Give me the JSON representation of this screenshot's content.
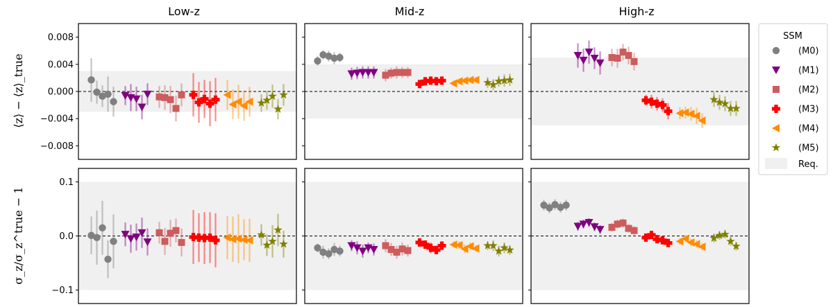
{
  "chart_data": {
    "type": "scatter",
    "panel_titles": [
      "Low-z",
      "Mid-z",
      "High-z"
    ],
    "ylabels": [
      "⟨z⟩ − ⟨z⟩_true",
      "σ_z/σ_z^true − 1"
    ],
    "legend": {
      "title": "SSM",
      "placement": "right",
      "entries": [
        {
          "label": "(M0)",
          "color": "#808080",
          "marker": "circle"
        },
        {
          "label": "(M1)",
          "color": "#800080",
          "marker": "triangle-down"
        },
        {
          "label": "(M2)",
          "color": "#cd5c5c",
          "marker": "square"
        },
        {
          "label": "(M3)",
          "color": "#ff0000",
          "marker": "plus"
        },
        {
          "label": "(M4)",
          "color": "#ff8c00",
          "marker": "triangle-left"
        },
        {
          "label": "(M5)",
          "color": "#808000",
          "marker": "star"
        }
      ],
      "band_label": "Req."
    },
    "rows": [
      {
        "name": "mean_offset",
        "ylim": [
          -0.01,
          0.01
        ],
        "yticks": [
          -0.008,
          -0.004,
          0.0,
          0.004,
          0.008
        ],
        "ytick_labels": [
          "−0.008",
          "−0.004",
          "0.000",
          "0.004",
          "0.008"
        ],
        "panels": [
          {
            "band": [
              -0.003,
              0.003
            ],
            "series": [
              {
                "values": [
                  0.0017,
                  -0.0001,
                  -0.0007,
                  -0.0004,
                  -0.0015
                ],
                "errors": [
                  0.0032,
                  0.0017,
                  0.0016,
                  0.0026,
                  0.0022
                ]
              },
              {
                "values": [
                  -0.0006,
                  -0.0009,
                  -0.0011,
                  -0.0023,
                  -0.0004
                ],
                "errors": [
                  0.0014,
                  0.002,
                  0.0018,
                  0.0018,
                  0.0016
                ]
              },
              {
                "values": [
                  -0.0008,
                  -0.0009,
                  -0.0012,
                  -0.0025,
                  -0.0005
                ],
                "errors": [
                  0.0016,
                  0.0018,
                  0.002,
                  0.0019,
                  0.0017
                ]
              },
              {
                "values": [
                  -0.0005,
                  -0.0016,
                  -0.0011,
                  -0.0018,
                  -0.0012
                ],
                "errors": [
                  0.0032,
                  0.003,
                  0.0028,
                  0.0033,
                  0.0032
                ]
              },
              {
                "values": [
                  -0.0005,
                  -0.0019,
                  -0.0015,
                  -0.0021,
                  -0.0015
                ],
                "errors": [
                  0.0022,
                  0.0022,
                  0.0025,
                  0.0022,
                  0.0022
                ]
              },
              {
                "values": [
                  -0.0017,
                  -0.0013,
                  -0.0007,
                  -0.0026,
                  -0.0005
                ],
                "errors": [
                  0.0013,
                  0.0014,
                  0.0017,
                  0.0015,
                  0.0016
                ]
              }
            ]
          },
          {
            "band": [
              -0.004,
              0.004
            ],
            "series": [
              {
                "values": [
                  0.0045,
                  0.0054,
                  0.0052,
                  0.0049,
                  0.005
                ],
                "errors": [
                  0.0007,
                  0.0007,
                  0.0008,
                  0.0009,
                  0.0007
                ]
              },
              {
                "values": [
                  0.0026,
                  0.0027,
                  0.0028,
                  0.0028,
                  0.0028
                ],
                "errors": [
                  0.0009,
                  0.0009,
                  0.0009,
                  0.0009,
                  0.0009
                ]
              },
              {
                "values": [
                  0.0024,
                  0.0027,
                  0.0028,
                  0.0028,
                  0.0028
                ],
                "errors": [
                  0.0009,
                  0.0008,
                  0.0009,
                  0.0008,
                  0.0008
                ]
              },
              {
                "values": [
                  0.0011,
                  0.0015,
                  0.0016,
                  0.0015,
                  0.0016
                ],
                "errors": [
                  0.0004,
                  0.0004,
                  0.0004,
                  0.0004,
                  0.0004
                ]
              },
              {
                "values": [
                  0.0012,
                  0.0015,
                  0.0016,
                  0.0017,
                  0.0017
                ],
                "errors": [
                  0.0004,
                  0.0004,
                  0.0004,
                  0.0004,
                  0.0004
                ]
              },
              {
                "values": [
                  0.0013,
                  0.001,
                  0.0015,
                  0.0016,
                  0.0017
                ],
                "errors": [
                  0.0008,
                  0.0008,
                  0.0008,
                  0.0009,
                  0.0009
                ]
              }
            ]
          },
          {
            "band": [
              -0.005,
              0.005
            ],
            "series": [
              {
                "values": [],
                "errors": []
              },
              {
                "values": [
                  0.0053,
                  0.0046,
                  0.0058,
                  0.0049,
                  0.0042
                ],
                "errors": [
                  0.0018,
                  0.0017,
                  0.0017,
                  0.0016,
                  0.0017
                ]
              },
              {
                "values": [
                  0.005,
                  0.0049,
                  0.0058,
                  0.0053,
                  0.0044
                ],
                "errors": [
                  0.0013,
                  0.0014,
                  0.0012,
                  0.0013,
                  0.0013
                ]
              },
              {
                "values": [
                  -0.0013,
                  -0.0015,
                  -0.0018,
                  -0.002,
                  -0.0029
                ],
                "errors": [
                  0.0008,
                  0.001,
                  0.001,
                  0.001,
                  0.0012
                ]
              },
              {
                "values": [
                  -0.0032,
                  -0.0031,
                  -0.0033,
                  -0.0036,
                  -0.0043
                ],
                "errors": [
                  0.0009,
                  0.0009,
                  0.001,
                  0.0012,
                  0.0011
                ]
              },
              {
                "values": [
                  -0.0012,
                  -0.0016,
                  -0.0018,
                  -0.0025,
                  -0.0025
                ],
                "errors": [
                  0.0011,
                  0.0011,
                  0.0011,
                  0.0011,
                  0.0011
                ]
              }
            ]
          }
        ]
      },
      {
        "name": "width_ratio",
        "ylim": [
          -0.125,
          0.125
        ],
        "yticks": [
          -0.1,
          0.0,
          0.1
        ],
        "ytick_labels": [
          "−0.1",
          "0.0",
          "0.1"
        ],
        "panels": [
          {
            "band": [
              -0.1,
              0.1
            ],
            "series": [
              {
                "values": [
                  0.001,
                  -0.003,
                  0.015,
                  -0.043,
                  -0.01
                ],
                "errors": [
                  0.035,
                  0.05,
                  0.05,
                  0.035,
                  0.05
                ]
              },
              {
                "values": [
                  0.003,
                  -0.005,
                  -0.002,
                  0.006,
                  -0.011
                ],
                "errors": [
                  0.022,
                  0.026,
                  0.025,
                  0.028,
                  0.025
                ]
              },
              {
                "values": [
                  0.006,
                  -0.01,
                  0.005,
                  0.01,
                  -0.012
                ],
                "errors": [
                  0.02,
                  0.025,
                  0.025,
                  0.022,
                  0.026
                ]
              },
              {
                "values": [
                  -0.002,
                  -0.003,
                  -0.004,
                  -0.003,
                  -0.008
                ],
                "errors": [
                  0.05,
                  0.045,
                  0.048,
                  0.047,
                  0.05
                ]
              },
              {
                "values": [
                  -0.003,
                  -0.006,
                  -0.005,
                  -0.007,
                  -0.008
                ],
                "errors": [
                  0.04,
                  0.042,
                  0.045,
                  0.038,
                  0.04
                ]
              },
              {
                "values": [
                  0.002,
                  -0.017,
                  -0.01,
                  0.011,
                  -0.015
                ],
                "errors": [
                  0.02,
                  0.02,
                  0.03,
                  0.03,
                  0.025
                ]
              }
            ]
          },
          {
            "band": [
              -0.1,
              0.1
            ],
            "series": [
              {
                "values": [
                  -0.022,
                  -0.03,
                  -0.033,
                  -0.025,
                  -0.028
                ],
                "errors": [
                  0.008,
                  0.012,
                  0.01,
                  0.012,
                  0.01
                ]
              },
              {
                "values": [
                  -0.018,
                  -0.022,
                  -0.028,
                  -0.022,
                  -0.025
                ],
                "errors": [
                  0.01,
                  0.012,
                  0.012,
                  0.01,
                  0.011
                ]
              },
              {
                "values": [
                  -0.018,
                  -0.025,
                  -0.03,
                  -0.024,
                  -0.027
                ],
                "errors": [
                  0.012,
                  0.012,
                  0.012,
                  0.012,
                  0.011
                ]
              },
              {
                "values": [
                  -0.012,
                  -0.016,
                  -0.022,
                  -0.026,
                  -0.018
                ],
                "errors": [
                  0.007,
                  0.008,
                  0.01,
                  0.008,
                  0.008
                ]
              },
              {
                "values": [
                  -0.016,
                  -0.017,
                  -0.024,
                  -0.019,
                  -0.023
                ],
                "errors": [
                  0.006,
                  0.007,
                  0.008,
                  0.007,
                  0.006
                ]
              },
              {
                "values": [
                  -0.018,
                  -0.018,
                  -0.028,
                  -0.022,
                  -0.026
                ],
                "errors": [
                  0.008,
                  0.01,
                  0.01,
                  0.01,
                  0.009
                ]
              }
            ]
          },
          {
            "band": [
              -0.1,
              0.1
            ],
            "series": [
              {
                "values": [
                  0.057,
                  0.052,
                  0.058,
                  0.053,
                  0.057
                ],
                "errors": [
                  0.01,
                  0.01,
                  0.01,
                  0.01,
                  0.01
                ]
              },
              {
                "values": [
                  0.018,
                  0.022,
                  0.025,
                  0.017,
                  0.012
                ],
                "errors": [
                  0.008,
                  0.008,
                  0.008,
                  0.008,
                  0.008
                ]
              },
              {
                "values": [
                  0.016,
                  0.022,
                  0.024,
                  0.014,
                  0.01
                ],
                "errors": [
                  0.008,
                  0.008,
                  0.008,
                  0.008,
                  0.008
                ]
              },
              {
                "values": [
                  -0.003,
                  0.002,
                  -0.006,
                  -0.008,
                  -0.013
                ],
                "errors": [
                  0.006,
                  0.007,
                  0.007,
                  0.007,
                  0.007
                ]
              },
              {
                "values": [
                  -0.01,
                  -0.005,
                  -0.012,
                  -0.015,
                  -0.02
                ],
                "errors": [
                  0.006,
                  0.007,
                  0.007,
                  0.007,
                  0.007
                ]
              },
              {
                "values": [
                  -0.004,
                  0.001,
                  0.003,
                  -0.01,
                  -0.019
                ],
                "errors": [
                  0.008,
                  0.008,
                  0.008,
                  0.008,
                  0.008
                ]
              }
            ]
          }
        ]
      }
    ]
  }
}
